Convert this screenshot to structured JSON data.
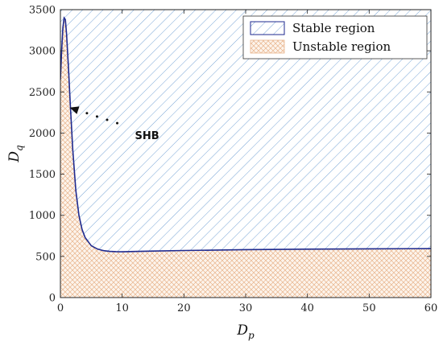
{
  "chart_data": {
    "type": "area",
    "xlabel": "D",
    "xlabel_sub": "p",
    "ylabel": "D",
    "ylabel_sub": "q",
    "xlim": [
      0,
      60
    ],
    "ylim": [
      0,
      3500
    ],
    "x_ticks": [
      0,
      10,
      20,
      30,
      40,
      50,
      60
    ],
    "y_ticks": [
      0,
      500,
      1000,
      1500,
      2000,
      2500,
      3000,
      3500
    ],
    "grid": false,
    "legend_position": "top-right",
    "series": [
      {
        "name": "Stable region",
        "pattern": "diagonal-hatch",
        "color": "#7aa6d6",
        "region": "above boundary curve"
      },
      {
        "name": "Unstable region",
        "pattern": "crosshatch",
        "color": "#e8b48c",
        "region": "below boundary curve"
      }
    ],
    "boundary_curve": {
      "color": "#1f2a8f",
      "x": [
        0,
        0.2,
        0.4,
        0.6,
        0.8,
        1.0,
        1.3,
        1.6,
        2.0,
        2.5,
        3.0,
        3.5,
        4.0,
        5.0,
        6.0,
        7.0,
        8.0,
        9.0,
        10,
        12,
        15,
        20,
        30,
        40,
        50,
        60
      ],
      "y": [
        2650,
        3000,
        3280,
        3400,
        3380,
        3200,
        2800,
        2350,
        1800,
        1300,
        1000,
        830,
        730,
        630,
        590,
        570,
        562,
        558,
        557,
        560,
        565,
        572,
        582,
        588,
        592,
        595
      ]
    },
    "annotations": [
      {
        "text": "SHB",
        "arrow_from": [
          9.2,
          2120
        ],
        "arrow_to": [
          1.5,
          2310
        ]
      }
    ]
  }
}
